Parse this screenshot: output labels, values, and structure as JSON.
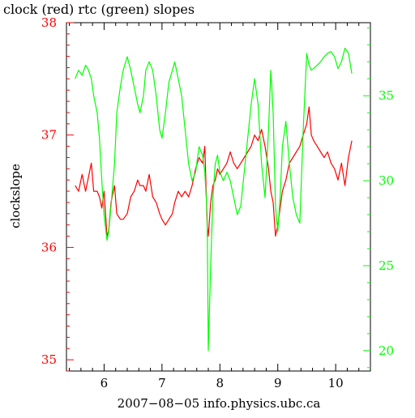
{
  "chart_data": {
    "type": "line",
    "title": "clock (red) rtc (green) slopes",
    "xlabel": "2007−08−05 info.physics.ubc.ca",
    "ylabel": "clockslope",
    "xlim": [
      5.35,
      10.6
    ],
    "ylim_left": [
      34.9,
      38.0
    ],
    "ylim_right": [
      18.8,
      39.3
    ],
    "x_ticks": [
      6,
      7,
      8,
      9,
      10
    ],
    "y_left_ticks": [
      35,
      36,
      37,
      38
    ],
    "y_right_ticks": [
      20,
      25,
      30,
      35
    ],
    "grid": false,
    "colors": {
      "clock": "#ff0000",
      "rtc": "#00ff00",
      "axis": "#000000"
    },
    "series": [
      {
        "name": "clock",
        "axis": "left",
        "color": "#ff0000",
        "x": [
          5.5,
          5.56,
          5.62,
          5.68,
          5.72,
          5.78,
          5.82,
          5.88,
          5.92,
          5.96,
          6.0,
          6.05,
          6.08,
          6.12,
          6.18,
          6.22,
          6.28,
          6.33,
          6.4,
          6.46,
          6.52,
          6.58,
          6.62,
          6.68,
          6.72,
          6.78,
          6.84,
          6.9,
          6.96,
          7.0,
          7.06,
          7.12,
          7.18,
          7.22,
          7.28,
          7.34,
          7.4,
          7.46,
          7.52,
          7.58,
          7.64,
          7.7,
          7.74,
          7.78,
          7.8,
          7.84,
          7.88,
          7.92,
          7.96,
          8.0,
          8.06,
          8.12,
          8.18,
          8.24,
          8.3,
          8.36,
          8.42,
          8.48,
          8.54,
          8.6,
          8.66,
          8.72,
          8.78,
          8.84,
          8.88,
          8.92,
          8.96,
          9.0,
          9.04,
          9.08,
          9.14,
          9.2,
          9.26,
          9.32,
          9.38,
          9.44,
          9.5,
          9.54,
          9.58,
          9.62,
          9.68,
          9.74,
          9.8,
          9.86,
          9.92,
          9.98,
          10.04,
          10.1,
          10.16,
          10.22,
          10.28
        ],
        "y": [
          36.55,
          36.5,
          36.65,
          36.5,
          36.6,
          36.75,
          36.5,
          36.5,
          36.45,
          36.35,
          36.5,
          36.1,
          36.15,
          36.4,
          36.55,
          36.3,
          36.25,
          36.25,
          36.3,
          36.45,
          36.5,
          36.6,
          36.55,
          36.55,
          36.5,
          36.65,
          36.45,
          36.4,
          36.3,
          36.25,
          36.2,
          36.25,
          36.3,
          36.4,
          36.5,
          36.45,
          36.5,
          36.45,
          36.55,
          36.7,
          36.8,
          36.75,
          36.9,
          36.2,
          36.1,
          36.4,
          36.55,
          36.6,
          36.7,
          36.65,
          36.7,
          36.75,
          36.85,
          36.75,
          36.7,
          36.75,
          36.8,
          36.85,
          36.9,
          37.0,
          36.95,
          37.05,
          36.9,
          36.7,
          36.5,
          36.4,
          36.1,
          36.2,
          36.35,
          36.5,
          36.6,
          36.75,
          36.8,
          36.85,
          36.9,
          37.0,
          37.1,
          37.25,
          37.0,
          36.95,
          36.9,
          36.85,
          36.8,
          36.85,
          36.75,
          36.7,
          36.6,
          36.75,
          36.55,
          36.8,
          36.95
        ]
      },
      {
        "name": "rtc",
        "axis": "right",
        "color": "#00ff00",
        "x": [
          5.5,
          5.56,
          5.62,
          5.68,
          5.72,
          5.78,
          5.82,
          5.88,
          5.92,
          5.96,
          6.0,
          6.05,
          6.08,
          6.12,
          6.18,
          6.22,
          6.28,
          6.33,
          6.4,
          6.46,
          6.52,
          6.58,
          6.62,
          6.68,
          6.72,
          6.78,
          6.84,
          6.9,
          6.96,
          7.0,
          7.06,
          7.12,
          7.18,
          7.22,
          7.28,
          7.34,
          7.4,
          7.46,
          7.52,
          7.58,
          7.64,
          7.7,
          7.74,
          7.78,
          7.8,
          7.84,
          7.88,
          7.92,
          7.96,
          8.0,
          8.06,
          8.12,
          8.18,
          8.24,
          8.3,
          8.36,
          8.42,
          8.48,
          8.54,
          8.6,
          8.66,
          8.72,
          8.78,
          8.84,
          8.88,
          8.92,
          8.96,
          9.0,
          9.04,
          9.08,
          9.14,
          9.2,
          9.26,
          9.32,
          9.38,
          9.44,
          9.5,
          9.54,
          9.58,
          9.62,
          9.68,
          9.74,
          9.8,
          9.86,
          9.92,
          9.98,
          10.04,
          10.1,
          10.16,
          10.22,
          10.28
        ],
        "y": [
          36.0,
          36.5,
          36.2,
          36.8,
          36.6,
          36.0,
          35.0,
          34.0,
          32.5,
          30.0,
          28.0,
          26.5,
          27.0,
          28.5,
          31.0,
          34.0,
          35.5,
          36.5,
          37.3,
          36.5,
          35.5,
          34.5,
          34.0,
          35.0,
          36.5,
          37.0,
          36.5,
          35.0,
          33.0,
          32.5,
          34.0,
          35.8,
          36.5,
          37.0,
          36.0,
          35.0,
          33.0,
          31.0,
          30.0,
          30.5,
          32.0,
          31.5,
          30.5,
          28.0,
          20.0,
          25.0,
          29.0,
          31.0,
          31.5,
          30.5,
          30.0,
          30.5,
          30.0,
          29.0,
          28.0,
          28.5,
          30.5,
          32.5,
          34.5,
          36.0,
          34.5,
          31.0,
          29.0,
          33.0,
          36.5,
          34.0,
          28.5,
          27.0,
          29.0,
          32.0,
          33.5,
          31.0,
          29.0,
          28.0,
          27.5,
          33.0,
          37.5,
          36.8,
          36.5,
          36.6,
          36.8,
          37.0,
          37.3,
          37.5,
          37.6,
          37.3,
          36.6,
          37.0,
          37.8,
          37.5,
          36.3
        ]
      }
    ]
  }
}
